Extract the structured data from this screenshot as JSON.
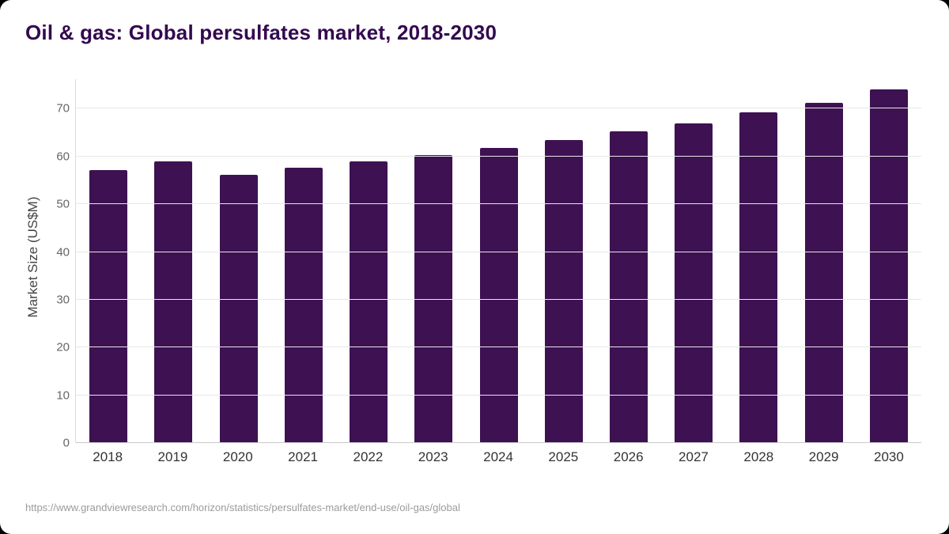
{
  "page": {
    "title": "Oil & gas: Global persulfates market, 2018-2030",
    "source_url": "https://www.grandviewresearch.com/horizon/statistics/persulfates-market/end-use/oil-gas/global"
  },
  "colors": {
    "bar": "#3d1152",
    "title": "#33094f",
    "grid": "#e7e7e7",
    "axis_text": "#666666",
    "x_label_text": "#333333",
    "source_text": "#9b9b9b"
  },
  "chart_data": {
    "type": "bar",
    "title": "Oil & gas: Global persulfates market, 2018-2030",
    "xlabel": "",
    "ylabel": "Market Size (US$M)",
    "categories": [
      "2018",
      "2019",
      "2020",
      "2021",
      "2022",
      "2023",
      "2024",
      "2025",
      "2026",
      "2027",
      "2028",
      "2029",
      "2030"
    ],
    "values": [
      57.1,
      59.0,
      56.2,
      57.6,
      59.0,
      60.3,
      61.8,
      63.5,
      65.2,
      67.0,
      69.3,
      71.3,
      74.0
    ],
    "yticks": [
      0,
      10,
      20,
      30,
      40,
      50,
      60,
      70
    ],
    "ylim": [
      0,
      76.2
    ],
    "grid": "horizontal",
    "legend": "none"
  }
}
